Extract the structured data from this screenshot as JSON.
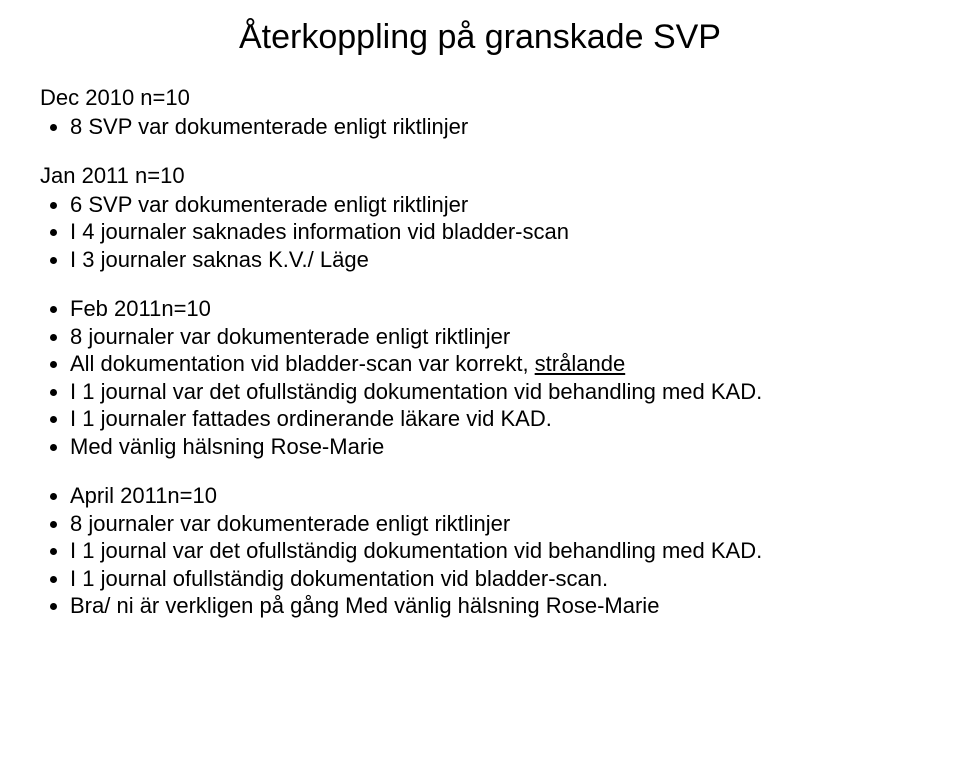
{
  "title": "Återkoppling på granskade SVP",
  "sections": [
    {
      "heading": "Dec 2010 n=10",
      "items": [
        {
          "type": "plain",
          "text": "8 SVP var dokumenterade enligt riktlinjer"
        }
      ]
    },
    {
      "heading": "Jan 2011 n=10",
      "items": [
        {
          "type": "plain",
          "text": "6 SVP var dokumenterade enligt riktlinjer"
        },
        {
          "type": "plain",
          "text": "I 4 journaler saknades information vid bladder-scan"
        },
        {
          "type": "plain",
          "text": "I 3 journaler saknas K.V./ Läge"
        }
      ]
    },
    {
      "heading": "",
      "items": [
        {
          "type": "plain",
          "text": "Feb 2011n=10"
        },
        {
          "type": "plain",
          "text": "8 journaler var dokumenterade enligt riktlinjer"
        },
        {
          "type": "with-underline",
          "before": "All dokumentation vid bladder-scan var korrekt, ",
          "underlined": "strålande"
        },
        {
          "type": "plain",
          "text": "I 1 journal var det ofullständig dokumentation vid  behandling med KAD."
        },
        {
          "type": "plain",
          "text": "I 1  journaler fattades ordinerande läkare vid KAD."
        },
        {
          "type": "plain",
          "text": "Med vänlig hälsning Rose-Marie"
        }
      ]
    },
    {
      "heading": "",
      "items": [
        {
          "type": "plain",
          "text": "April 2011n=10"
        },
        {
          "type": "plain",
          "text": "8 journaler var dokumenterade enligt riktlinjer"
        },
        {
          "type": "plain",
          "text": "I 1 journal var det ofullständig dokumentation vid  behandling med KAD."
        },
        {
          "type": "plain",
          "text": "I 1  journal ofullständig dokumentation vid bladder-scan."
        },
        {
          "type": "plain",
          "text": "Bra/ ni är verkligen på gång Med vänlig hälsning Rose-Marie"
        }
      ]
    }
  ],
  "colors": {
    "background": "#ffffff",
    "text": "#000000"
  },
  "typography": {
    "title_fontsize": 34,
    "body_fontsize": 22,
    "font_family": "Arial"
  }
}
